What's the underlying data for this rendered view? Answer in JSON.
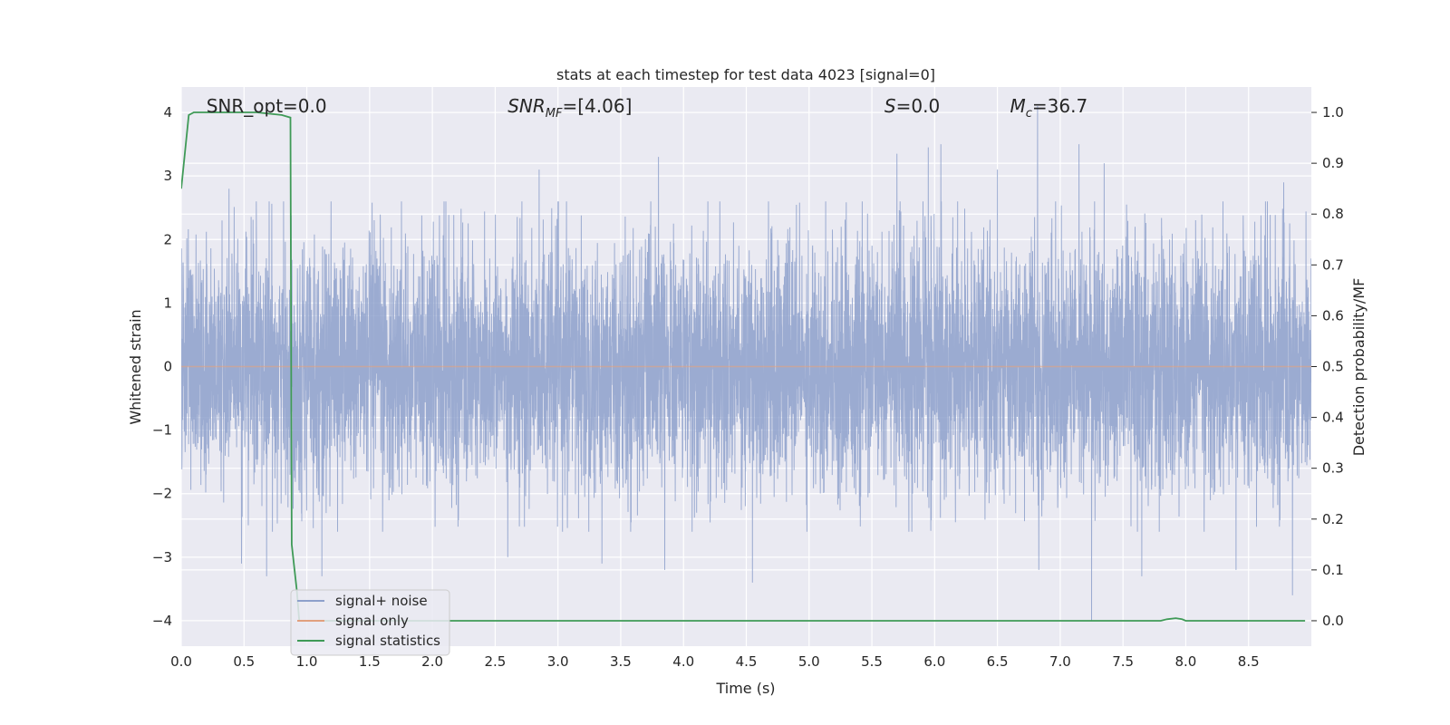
{
  "chart_data": {
    "type": "line",
    "title": "stats at each timestep for test data 4023 [signal=0]",
    "xlabel": "Time (s)",
    "ylabel": "Whitened strain",
    "ylabel_right": "Detection probability/MF",
    "xlim": [
      0,
      9.0
    ],
    "ylim": [
      -4.4,
      4.4
    ],
    "ylim_right": [
      -0.05,
      1.05
    ],
    "x_ticks": [
      "0.0",
      "0.5",
      "1.0",
      "1.5",
      "2.0",
      "2.5",
      "3.0",
      "3.5",
      "4.0",
      "4.5",
      "5.0",
      "5.5",
      "6.0",
      "6.5",
      "7.0",
      "7.5",
      "8.0",
      "8.5"
    ],
    "y_ticks": [
      "4",
      "3",
      "2",
      "1",
      "0",
      "−1",
      "−2",
      "−3",
      "−4"
    ],
    "y_right_ticks": [
      "1.0",
      "0.9",
      "0.8",
      "0.7",
      "0.6",
      "0.5",
      "0.4",
      "0.3",
      "0.2",
      "0.1",
      "0.0"
    ],
    "grid": true,
    "legend_position": "lower-left",
    "annotations": [
      {
        "text": "SNR_opt=0.0",
        "x": 0.2
      },
      {
        "text": "SNR",
        "sub": "MF",
        "tail": "=[4.06]",
        "x": 2.6
      },
      {
        "text": "S",
        "tail": "=0.0",
        "x": 5.6
      },
      {
        "text": "M",
        "sub": "c",
        "tail": "=36.7",
        "x": 6.6
      }
    ],
    "series": [
      {
        "name": "signal+ noise",
        "color": "#8da0cb",
        "axis": "left",
        "note": "dense gaussian noise, roughly ±2 with spikes",
        "noise_sigma": 1.0,
        "spikes": [
          {
            "x": 0.38,
            "y": 2.8
          },
          {
            "x": 0.48,
            "y": -3.1
          },
          {
            "x": 0.68,
            "y": -3.3
          },
          {
            "x": 1.12,
            "y": -3.3
          },
          {
            "x": 2.6,
            "y": -3.0
          },
          {
            "x": 2.85,
            "y": 3.1
          },
          {
            "x": 3.35,
            "y": -3.1
          },
          {
            "x": 3.8,
            "y": 3.3
          },
          {
            "x": 3.85,
            "y": -3.2
          },
          {
            "x": 4.55,
            "y": -3.4
          },
          {
            "x": 5.7,
            "y": 3.35
          },
          {
            "x": 5.95,
            "y": 3.45
          },
          {
            "x": 6.05,
            "y": 3.5
          },
          {
            "x": 6.5,
            "y": 3.1
          },
          {
            "x": 6.82,
            "y": 4.1
          },
          {
            "x": 6.83,
            "y": -3.2
          },
          {
            "x": 7.25,
            "y": -4.0
          },
          {
            "x": 7.15,
            "y": 3.5
          },
          {
            "x": 7.35,
            "y": 3.2
          },
          {
            "x": 7.65,
            "y": -3.3
          },
          {
            "x": 8.4,
            "y": -3.2
          },
          {
            "x": 8.85,
            "y": -3.6
          },
          {
            "x": 8.78,
            "y": 2.9
          }
        ]
      },
      {
        "name": "signal only",
        "color": "#e1a07e",
        "axis": "left",
        "x": [
          0.0,
          9.0
        ],
        "y": [
          0.0,
          0.0
        ]
      },
      {
        "name": "signal statistics",
        "color": "#3f9a57",
        "axis": "right",
        "x": [
          0.0,
          0.06,
          0.1,
          0.2,
          0.4,
          0.6,
          0.8,
          0.87,
          0.88,
          0.92,
          0.94,
          1.0,
          2.0,
          4.0,
          6.0,
          7.5,
          7.8,
          7.85,
          7.92,
          7.97,
          8.0,
          8.5,
          8.95
        ],
        "y": [
          0.85,
          0.995,
          1.0,
          1.0,
          1.0,
          1.0,
          0.995,
          0.99,
          0.15,
          0.06,
          0.0,
          0.0,
          0.0,
          0.0,
          0.0,
          0.0,
          0.0,
          0.003,
          0.005,
          0.003,
          0.0,
          0.0,
          0.0
        ]
      }
    ]
  }
}
